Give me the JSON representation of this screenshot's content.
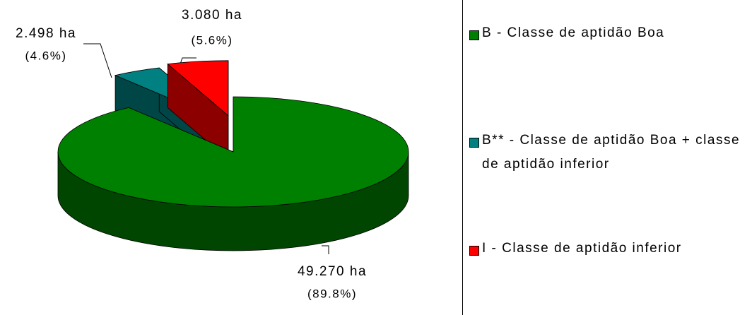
{
  "chart_data": {
    "type": "pie3d",
    "categories": [
      "B - Classe de aptidão Boa",
      "B** - Classe de aptidão Boa + classe de aptidão inferior",
      "I - Classe de aptidão inferior"
    ],
    "values": [
      49270,
      2498,
      3080
    ],
    "value_labels": [
      "49.270 ha",
      "2.498 ha",
      "3.080 ha"
    ],
    "percents": [
      89.8,
      4.6,
      5.6
    ],
    "percent_labels": [
      "(89.8%)",
      "(4.6%)",
      "(5.6%)"
    ],
    "colors": [
      "#008000",
      "#008080",
      "#ff0000"
    ],
    "legend": "right"
  }
}
